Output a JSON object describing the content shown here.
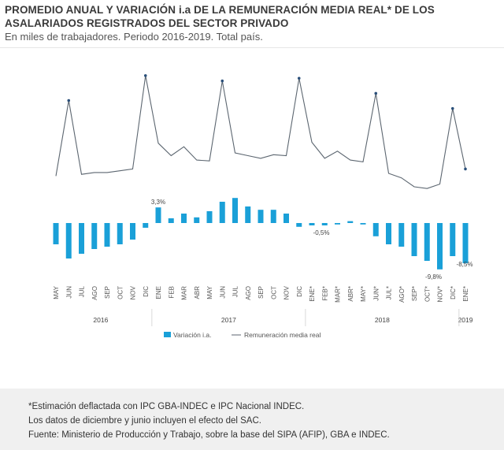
{
  "title": "PROMEDIO ANUAL Y VARIACIÓN i.a DE LA REMUNERACIÓN MEDIA REAL* DE LOS ASALARIADOS REGISTRADOS DEL SECTOR PRIVADO",
  "subtitle": "En miles de trabajadores. Periodo 2016-2019. Total país.",
  "chart_data": {
    "type": "bar+line",
    "categories": [
      "MAY",
      "JUN",
      "JUL",
      "AGO",
      "SEP",
      "OCT",
      "NOV",
      "DIC",
      "ENE",
      "FEB",
      "MAR",
      "ABR",
      "MAY",
      "JUN",
      "JUL",
      "AGO",
      "SEP",
      "OCT",
      "NOV",
      "DIC",
      "ENE*",
      "FEB*",
      "MAR*",
      "ABR*",
      "MAY*",
      "JUN*",
      "JUL*",
      "AGO*",
      "SEP*",
      "OCT*",
      "NOV*",
      "DIC*",
      "ENE*"
    ],
    "years": [
      {
        "label": "2016",
        "from": 0,
        "to": 7
      },
      {
        "label": "2017",
        "from": 8,
        "to": 19
      },
      {
        "label": "2018",
        "from": 20,
        "to": 31
      },
      {
        "label": "2019",
        "from": 32,
        "to": 32
      }
    ],
    "series": [
      {
        "name": "Variación i.a.",
        "kind": "bar",
        "color": "#1aa0d8",
        "values": [
          -4.5,
          -7.5,
          -6.5,
          -5.5,
          -5.0,
          -4.5,
          -3.5,
          -1.0,
          3.3,
          1.0,
          2.0,
          1.2,
          2.5,
          4.5,
          5.3,
          3.5,
          2.8,
          2.8,
          2.0,
          -0.8,
          -0.5,
          -0.5,
          -0.3,
          0.4,
          -0.3,
          -2.8,
          -4.5,
          -5.0,
          -7.0,
          -8.0,
          -9.8,
          -7.0,
          -8.5
        ]
      },
      {
        "name": "Remuneración media real",
        "kind": "line",
        "color": "#5c6670",
        "values": [
          28.0,
          36.5,
          28.2,
          28.4,
          28.4,
          28.6,
          28.8,
          39.3,
          31.7,
          30.3,
          31.3,
          29.8,
          29.7,
          38.7,
          30.6,
          30.3,
          30.0,
          30.4,
          30.3,
          39.0,
          31.8,
          30.0,
          30.8,
          29.8,
          29.6,
          37.3,
          28.3,
          27.8,
          26.8,
          26.6,
          27.1,
          35.6,
          28.8
        ]
      }
    ],
    "data_labels": [
      {
        "index": 8,
        "text": "3,3%"
      },
      {
        "index": 20,
        "text": "-0,5%"
      },
      {
        "index": 30,
        "text": "-9,8%"
      },
      {
        "index": 32,
        "text": "-8,5%"
      }
    ],
    "legend": [
      "Variación i.a.",
      "Remuneración media real"
    ],
    "legend_position": "bottom",
    "grid": false
  },
  "footer": {
    "lines": [
      "*Estimación deflactada con IPC GBA-INDEC e IPC Nacional INDEC.",
      "Los datos de diciembre y junio incluyen el efecto del SAC.",
      "Fuente: Ministerio de Producción y Trabajo, sobre la base del SIPA (AFIP), GBA e INDEC."
    ]
  }
}
